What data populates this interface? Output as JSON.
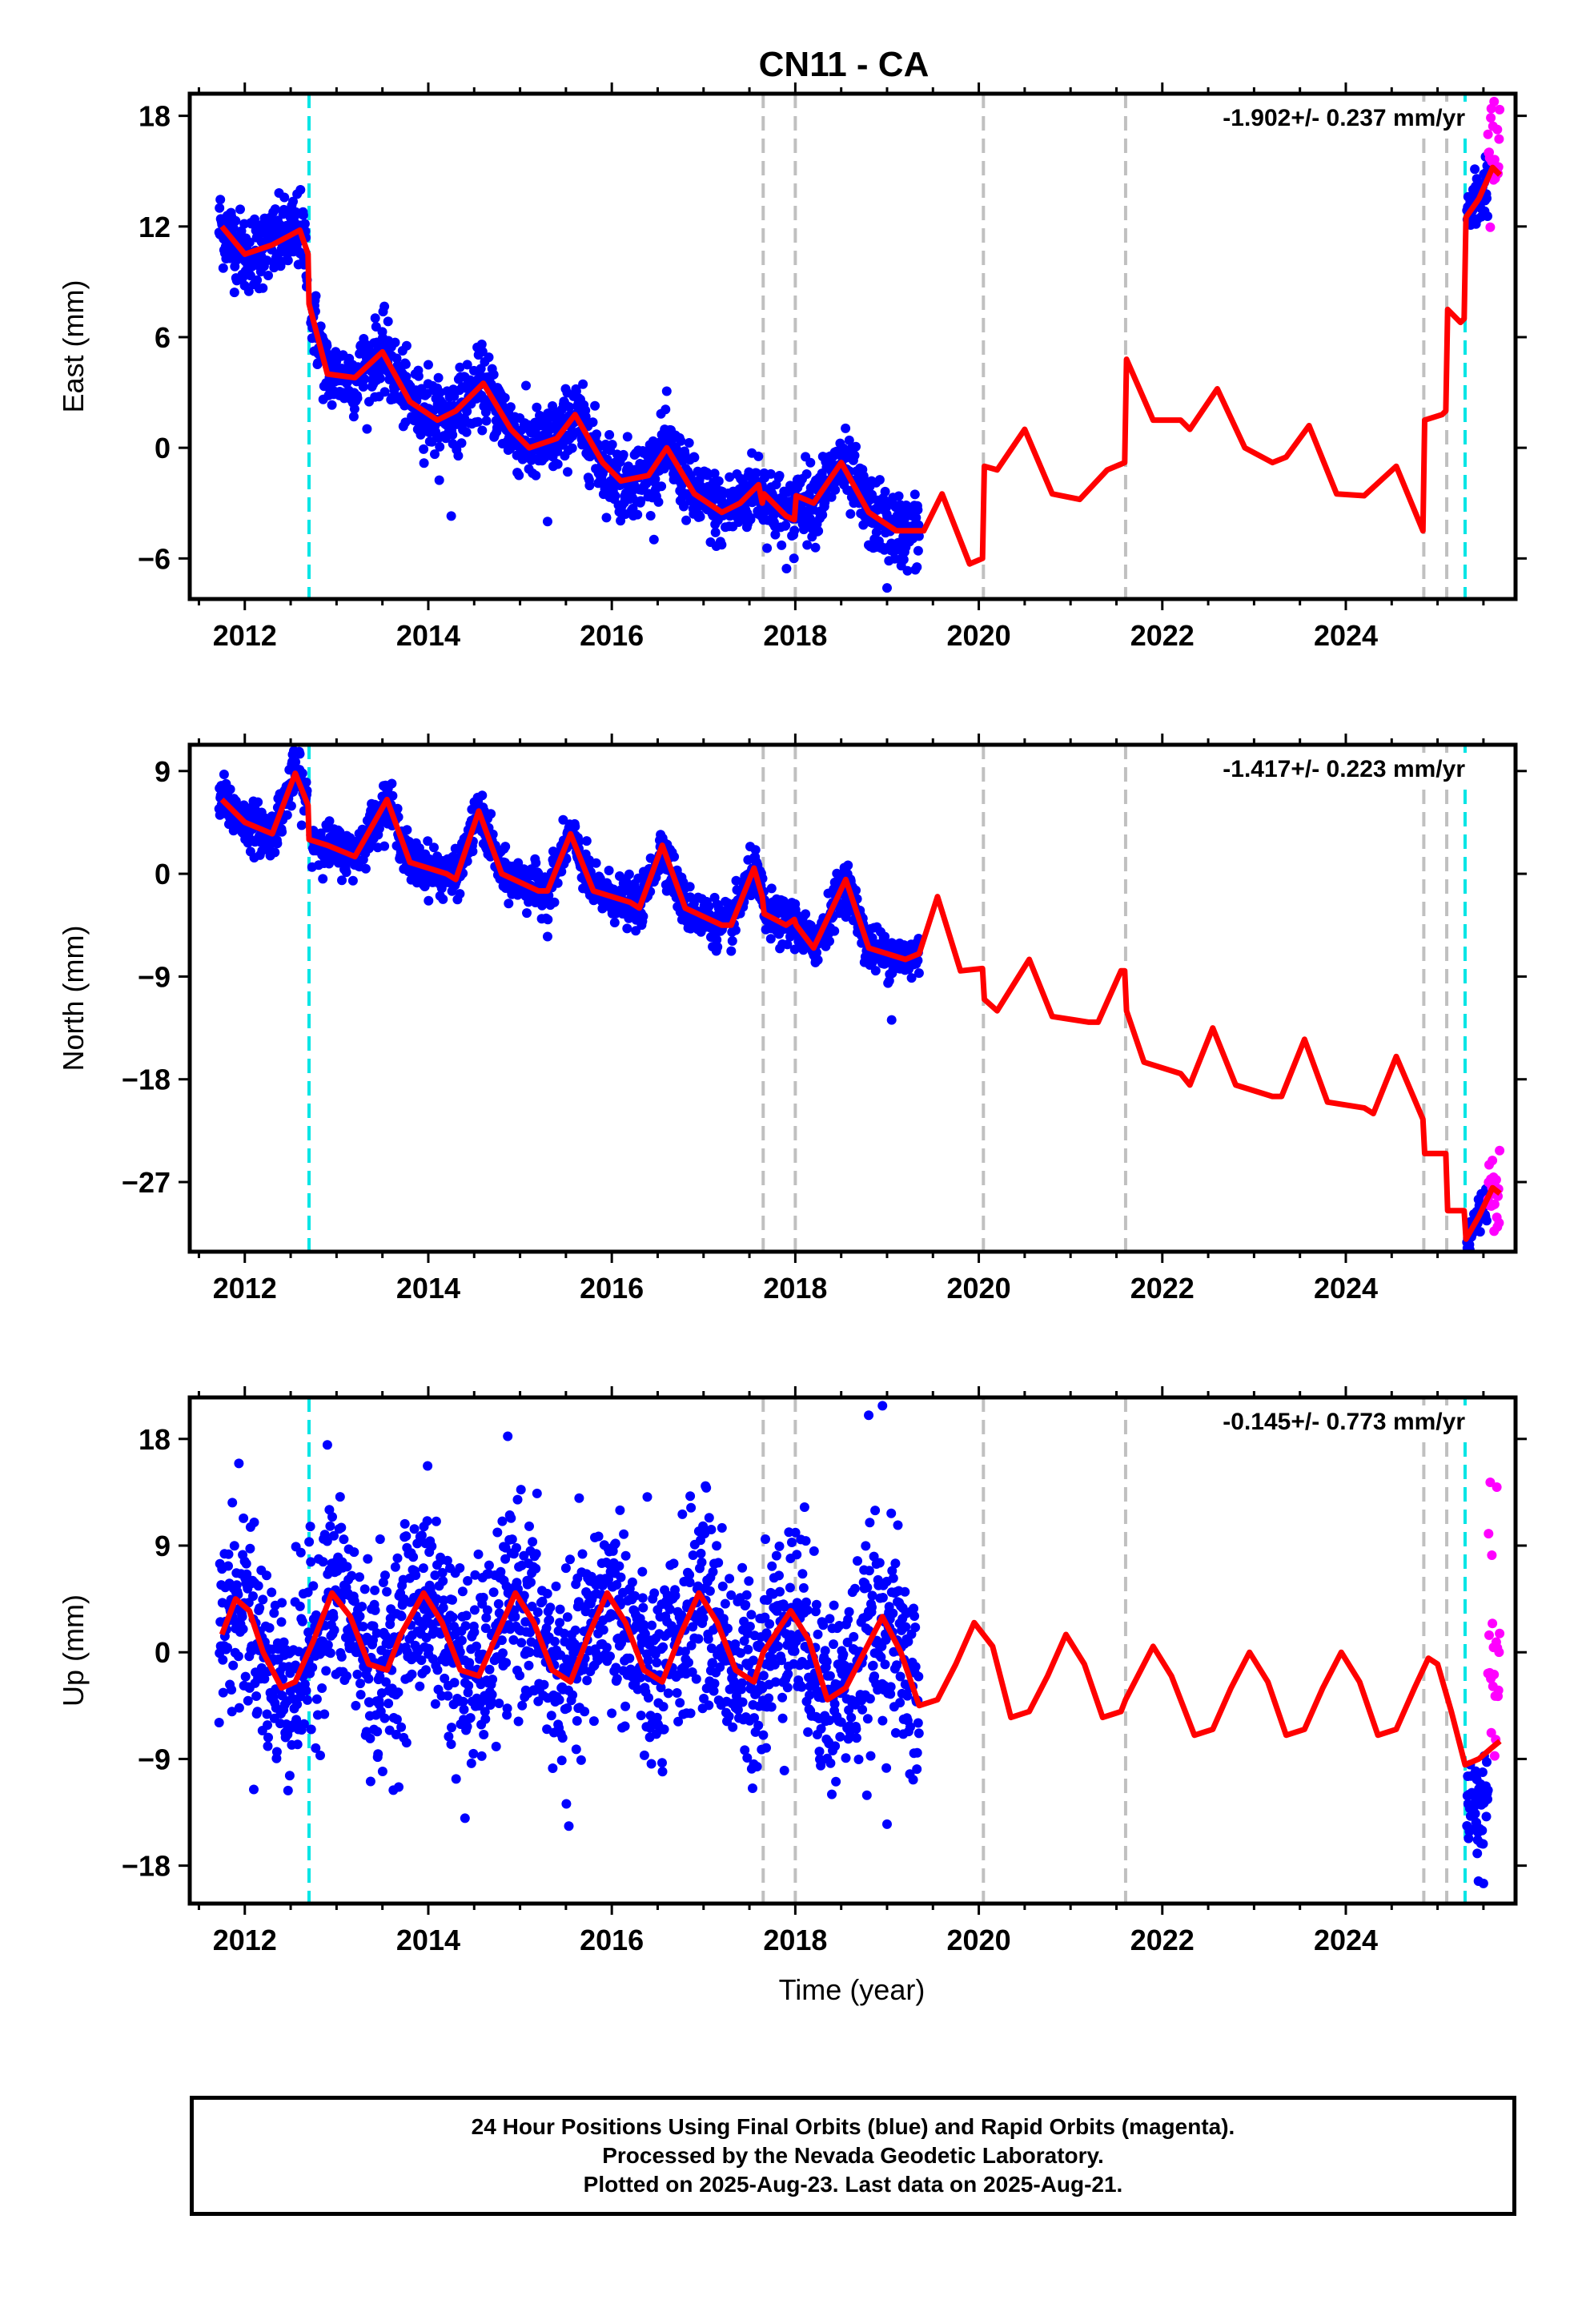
{
  "title": "CN11 - CA",
  "xlabel": "Time (year)",
  "colors": {
    "final": "#0000ff",
    "rapid": "#ff00ff",
    "model": "#ff0000",
    "offset_equipment": "#00e5e5",
    "offset_other": "#c0c0c0"
  },
  "footer": {
    "line1": "24 Hour Positions Using Final Orbits (blue) and Rapid Orbits (magenta).",
    "line2": "Processed by the Nevada Geodetic Laboratory.",
    "line3": "Plotted on 2025-Aug-23. Last data on 2025-Aug-21."
  },
  "chart_data": [
    {
      "type": "scatter",
      "panel": "east",
      "ylabel": "East (mm)",
      "velocity": "-1.902+/- 0.237 mm/yr",
      "xlim": [
        2011.4,
        2025.85
      ],
      "ylim": [
        -8.2,
        19.2
      ],
      "xticks": [
        2012,
        2014,
        2016,
        2018,
        2020,
        2022,
        2024
      ],
      "yticks": [
        -6,
        0,
        6,
        12,
        18
      ],
      "grid": false,
      "cyan_offsets": [
        2012.7,
        2025.3
      ],
      "gray_offsets": [
        2017.65,
        2018.0,
        2020.05,
        2021.6,
        2024.85,
        2025.1
      ],
      "data_end_final": 2019.35,
      "rapid_range": [
        2025.55,
        2025.65
      ],
      "model": [
        [
          2011.75,
          12
        ],
        [
          2012.0,
          10.5
        ],
        [
          2012.3,
          11
        ],
        [
          2012.6,
          11.8
        ],
        [
          2012.69,
          10.5
        ],
        [
          2012.7,
          7.8
        ],
        [
          2012.9,
          4
        ],
        [
          2013.2,
          3.8
        ],
        [
          2013.5,
          5.2
        ],
        [
          2013.8,
          2.5
        ],
        [
          2014.1,
          1.5
        ],
        [
          2014.3,
          2.0
        ],
        [
          2014.6,
          3.5
        ],
        [
          2014.9,
          1.0
        ],
        [
          2015.1,
          0
        ],
        [
          2015.4,
          0.5
        ],
        [
          2015.6,
          1.8
        ],
        [
          2015.9,
          -0.8
        ],
        [
          2016.1,
          -1.8
        ],
        [
          2016.4,
          -1.5
        ],
        [
          2016.6,
          0
        ],
        [
          2016.9,
          -2.5
        ],
        [
          2017.2,
          -3.5
        ],
        [
          2017.4,
          -3.0
        ],
        [
          2017.6,
          -2.0
        ],
        [
          2017.64,
          -3.0
        ],
        [
          2017.66,
          -2.5
        ],
        [
          2017.9,
          -3.7
        ],
        [
          2017.99,
          -3.9
        ],
        [
          2018.01,
          -2.6
        ],
        [
          2018.2,
          -3.0
        ],
        [
          2018.5,
          -0.8
        ],
        [
          2018.8,
          -3.5
        ],
        [
          2019.1,
          -4.5
        ],
        [
          2019.4,
          -4.5
        ],
        [
          2019.6,
          -2.5
        ],
        [
          2019.9,
          -6.3
        ],
        [
          2020.04,
          -6.0
        ],
        [
          2020.06,
          -1.0
        ],
        [
          2020.2,
          -1.2
        ],
        [
          2020.5,
          1.0
        ],
        [
          2020.8,
          -2.5
        ],
        [
          2021.1,
          -2.8
        ],
        [
          2021.4,
          -1.2
        ],
        [
          2021.59,
          -0.8
        ],
        [
          2021.61,
          4.8
        ],
        [
          2021.9,
          1.5
        ],
        [
          2022.2,
          1.5
        ],
        [
          2022.3,
          1.0
        ],
        [
          2022.6,
          3.2
        ],
        [
          2022.9,
          0
        ],
        [
          2023.2,
          -0.8
        ],
        [
          2023.35,
          -0.5
        ],
        [
          2023.6,
          1.2
        ],
        [
          2023.9,
          -2.5
        ],
        [
          2024.2,
          -2.6
        ],
        [
          2024.55,
          -1.0
        ],
        [
          2024.84,
          -4.5
        ],
        [
          2024.86,
          1.5
        ],
        [
          2025.05,
          1.8
        ],
        [
          2025.09,
          2.0
        ],
        [
          2025.11,
          7.5
        ],
        [
          2025.25,
          6.8
        ],
        [
          2025.29,
          7.0
        ],
        [
          2025.31,
          12.5
        ],
        [
          2025.45,
          13.5
        ],
        [
          2025.6,
          15.2
        ],
        [
          2025.68,
          14.8
        ]
      ],
      "final_segments": [
        {
          "x_start": 2011.72,
          "x_end": 2012.68,
          "model_offset": 0,
          "spread": 1.4
        },
        {
          "x_start": 2012.72,
          "x_end": 2019.35,
          "model_offset": 0,
          "spread": 1.3
        },
        {
          "x_start": 2025.32,
          "x_end": 2025.55,
          "model_offset": 0,
          "spread": 1.2
        }
      ],
      "rapid_segments": [
        {
          "x_start": 2025.55,
          "x_end": 2025.68,
          "model_offset": 0.5,
          "spread": 2.2
        }
      ],
      "outliers": [
        [
          2014.25,
          -3.7
        ],
        [
          2019.0,
          -7.6
        ],
        [
          2014.0,
          4.5
        ],
        [
          2015.3,
          -4.0
        ]
      ]
    },
    {
      "type": "scatter",
      "panel": "north",
      "ylabel": "North (mm)",
      "velocity": "-1.417+/- 0.223 mm/yr",
      "xlim": [
        2011.4,
        2025.85
      ],
      "ylim": [
        -33.1,
        11.3
      ],
      "xticks": [
        2012,
        2014,
        2016,
        2018,
        2020,
        2022,
        2024
      ],
      "yticks": [
        -27,
        -18,
        -9,
        0,
        9
      ],
      "grid": false,
      "cyan_offsets": [
        2012.7,
        2025.3
      ],
      "gray_offsets": [
        2017.65,
        2018.0,
        2020.05,
        2021.6,
        2024.85,
        2025.1
      ],
      "model": [
        [
          2011.75,
          6.5
        ],
        [
          2012.0,
          4.5
        ],
        [
          2012.3,
          3.5
        ],
        [
          2012.55,
          8.8
        ],
        [
          2012.69,
          6.0
        ],
        [
          2012.7,
          3.0
        ],
        [
          2012.9,
          2.5
        ],
        [
          2013.2,
          1.5
        ],
        [
          2013.55,
          6.5
        ],
        [
          2013.8,
          1.0
        ],
        [
          2014.2,
          0
        ],
        [
          2014.3,
          -0.5
        ],
        [
          2014.55,
          5.5
        ],
        [
          2014.8,
          0
        ],
        [
          2015.2,
          -1.5
        ],
        [
          2015.3,
          -1.5
        ],
        [
          2015.55,
          3.5
        ],
        [
          2015.8,
          -1.5
        ],
        [
          2016.2,
          -2.5
        ],
        [
          2016.3,
          -3.0
        ],
        [
          2016.55,
          2.5
        ],
        [
          2016.8,
          -3.0
        ],
        [
          2017.2,
          -4.5
        ],
        [
          2017.3,
          -4.5
        ],
        [
          2017.55,
          0.5
        ],
        [
          2017.64,
          -2.0
        ],
        [
          2017.66,
          -3.5
        ],
        [
          2017.9,
          -4.5
        ],
        [
          2017.99,
          -4.0
        ],
        [
          2018.01,
          -4.5
        ],
        [
          2018.2,
          -6.5
        ],
        [
          2018.55,
          -0.5
        ],
        [
          2018.8,
          -6.5
        ],
        [
          2019.2,
          -7.5
        ],
        [
          2019.35,
          -7.0
        ],
        [
          2019.55,
          -2.0
        ],
        [
          2019.8,
          -8.5
        ],
        [
          2020.04,
          -8.3
        ],
        [
          2020.06,
          -11.0
        ],
        [
          2020.2,
          -12.0
        ],
        [
          2020.55,
          -7.5
        ],
        [
          2020.8,
          -12.5
        ],
        [
          2021.2,
          -13.0
        ],
        [
          2021.3,
          -13.0
        ],
        [
          2021.55,
          -8.5
        ],
        [
          2021.59,
          -8.5
        ],
        [
          2021.61,
          -12.0
        ],
        [
          2021.8,
          -16.5
        ],
        [
          2022.2,
          -17.5
        ],
        [
          2022.3,
          -18.5
        ],
        [
          2022.55,
          -13.5
        ],
        [
          2022.8,
          -18.5
        ],
        [
          2023.2,
          -19.5
        ],
        [
          2023.3,
          -19.5
        ],
        [
          2023.55,
          -14.5
        ],
        [
          2023.8,
          -20.0
        ],
        [
          2024.2,
          -20.5
        ],
        [
          2024.3,
          -21.0
        ],
        [
          2024.55,
          -16.0
        ],
        [
          2024.84,
          -21.5
        ],
        [
          2024.86,
          -24.5
        ],
        [
          2025.09,
          -24.5
        ],
        [
          2025.11,
          -29.5
        ],
        [
          2025.29,
          -29.5
        ],
        [
          2025.31,
          -32.0
        ],
        [
          2025.45,
          -30.0
        ],
        [
          2025.6,
          -27.5
        ],
        [
          2025.68,
          -28.0
        ]
      ],
      "final_segments": [
        {
          "x_start": 2011.72,
          "x_end": 2012.68,
          "model_offset": 0,
          "spread": 1.4
        },
        {
          "x_start": 2012.72,
          "x_end": 2019.35,
          "model_offset": 0,
          "spread": 1.3
        },
        {
          "x_start": 2025.32,
          "x_end": 2025.55,
          "model_offset": 0,
          "spread": 1.2
        }
      ],
      "rapid_segments": [
        {
          "x_start": 2025.55,
          "x_end": 2025.68,
          "model_offset": 0.5,
          "spread": 2.2
        }
      ],
      "outliers": [
        [
          2019.05,
          -12.8
        ],
        [
          2015.3,
          -5.5
        ],
        [
          2012.6,
          10.5
        ]
      ]
    },
    {
      "type": "scatter",
      "panel": "up",
      "ylabel": "Up (mm)",
      "velocity": "-0.145+/- 0.773 mm/yr",
      "xlim": [
        2011.4,
        2025.85
      ],
      "ylim": [
        -21.2,
        21.5
      ],
      "xticks": [
        2012,
        2014,
        2016,
        2018,
        2020,
        2022,
        2024
      ],
      "yticks": [
        -18,
        -9,
        0,
        9,
        18
      ],
      "grid": false,
      "cyan_offsets": [
        2012.7,
        2025.3
      ],
      "gray_offsets": [
        2017.65,
        2018.0,
        2020.05,
        2021.6,
        2024.85,
        2025.1
      ],
      "model": [
        [
          2011.75,
          1.5
        ],
        [
          2011.9,
          4.5
        ],
        [
          2012.05,
          3.5
        ],
        [
          2012.2,
          0
        ],
        [
          2012.4,
          -3.0
        ],
        [
          2012.55,
          -2.5
        ],
        [
          2012.75,
          1.0
        ],
        [
          2012.95,
          5.0
        ],
        [
          2013.15,
          3.0
        ],
        [
          2013.35,
          -1.0
        ],
        [
          2013.55,
          -1.5
        ],
        [
          2013.7,
          1.5
        ],
        [
          2013.95,
          5.0
        ],
        [
          2014.15,
          2.5
        ],
        [
          2014.35,
          -1.5
        ],
        [
          2014.55,
          -2.0
        ],
        [
          2014.75,
          1.5
        ],
        [
          2014.95,
          5.0
        ],
        [
          2015.15,
          2.5
        ],
        [
          2015.35,
          -1.5
        ],
        [
          2015.55,
          -2.5
        ],
        [
          2015.75,
          1.5
        ],
        [
          2015.95,
          5.0
        ],
        [
          2016.15,
          2.5
        ],
        [
          2016.35,
          -1.5
        ],
        [
          2016.55,
          -2.5
        ],
        [
          2016.75,
          1.5
        ],
        [
          2016.95,
          5.0
        ],
        [
          2017.15,
          2.5
        ],
        [
          2017.35,
          -1.5
        ],
        [
          2017.55,
          -2.5
        ],
        [
          2017.65,
          0
        ],
        [
          2017.95,
          3.5
        ],
        [
          2018.15,
          1.0
        ],
        [
          2018.35,
          -4.0
        ],
        [
          2018.55,
          -3.0
        ],
        [
          2018.75,
          0
        ],
        [
          2018.95,
          3.0
        ],
        [
          2019.15,
          0
        ],
        [
          2019.35,
          -4.5
        ],
        [
          2019.55,
          -4.0
        ],
        [
          2019.75,
          -1.0
        ],
        [
          2019.95,
          2.5
        ],
        [
          2020.15,
          0.5
        ],
        [
          2020.35,
          -5.5
        ],
        [
          2020.55,
          -5.0
        ],
        [
          2020.75,
          -2.0
        ],
        [
          2020.95,
          1.5
        ],
        [
          2021.15,
          -1.0
        ],
        [
          2021.35,
          -5.5
        ],
        [
          2021.55,
          -5.0
        ],
        [
          2021.6,
          -4.0
        ],
        [
          2021.9,
          0.5
        ],
        [
          2022.1,
          -2.0
        ],
        [
          2022.35,
          -7.0
        ],
        [
          2022.55,
          -6.5
        ],
        [
          2022.75,
          -3.0
        ],
        [
          2022.95,
          0
        ],
        [
          2023.15,
          -2.5
        ],
        [
          2023.35,
          -7.0
        ],
        [
          2023.55,
          -6.5
        ],
        [
          2023.75,
          -3.0
        ],
        [
          2023.95,
          0
        ],
        [
          2024.15,
          -2.5
        ],
        [
          2024.35,
          -7.0
        ],
        [
          2024.55,
          -6.5
        ],
        [
          2024.75,
          -3.0
        ],
        [
          2024.9,
          -0.5
        ],
        [
          2025.0,
          -1.0
        ],
        [
          2025.15,
          -5.0
        ],
        [
          2025.3,
          -9.5
        ],
        [
          2025.45,
          -9.0
        ],
        [
          2025.6,
          -8.0
        ],
        [
          2025.68,
          -7.5
        ]
      ],
      "final_segments": [
        {
          "x_start": 2011.72,
          "x_end": 2019.35,
          "model_offset": 0,
          "spread": 5.5
        },
        {
          "x_start": 2025.32,
          "x_end": 2025.55,
          "model_offset": -4.0,
          "spread": 3.5
        }
      ],
      "rapid_segments": [
        {
          "x_start": 2025.55,
          "x_end": 2025.68,
          "model_offset": 9.0,
          "spread": 7.0
        }
      ],
      "outliers": [
        [
          2018.8,
          20.0
        ],
        [
          2018.95,
          20.8
        ],
        [
          2012.9,
          17.5
        ],
        [
          2014.4,
          -14.0
        ],
        [
          2019.0,
          -14.5
        ],
        [
          2025.5,
          -19.5
        ]
      ]
    }
  ]
}
